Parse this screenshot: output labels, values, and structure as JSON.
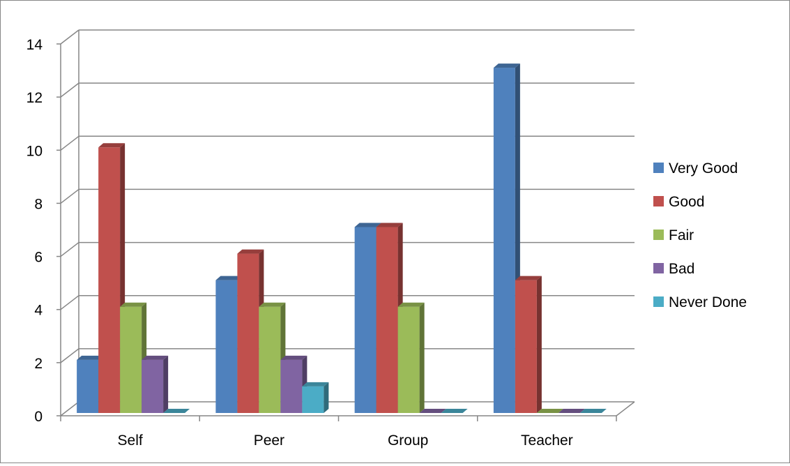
{
  "chart_data": {
    "type": "bar",
    "categories": [
      "Self",
      "Peer",
      "Group",
      "Teacher"
    ],
    "series": [
      {
        "name": "Very Good",
        "values": [
          2,
          5,
          7,
          13
        ],
        "color": "#4F81BD"
      },
      {
        "name": "Good",
        "values": [
          10,
          6,
          7,
          5
        ],
        "color": "#C0504D"
      },
      {
        "name": "Fair",
        "values": [
          4,
          4,
          4,
          0
        ],
        "color": "#9BBB59"
      },
      {
        "name": "Bad",
        "values": [
          2,
          2,
          0,
          0
        ],
        "color": "#8064A2"
      },
      {
        "name": "Never Done",
        "values": [
          0,
          1,
          0,
          0
        ],
        "color": "#4BACC6"
      }
    ],
    "yticks": [
      0,
      2,
      4,
      6,
      8,
      10,
      12,
      14
    ],
    "ylim": [
      0,
      14
    ],
    "grid": true,
    "legend_position": "right",
    "style": "3d-clustered-column"
  }
}
